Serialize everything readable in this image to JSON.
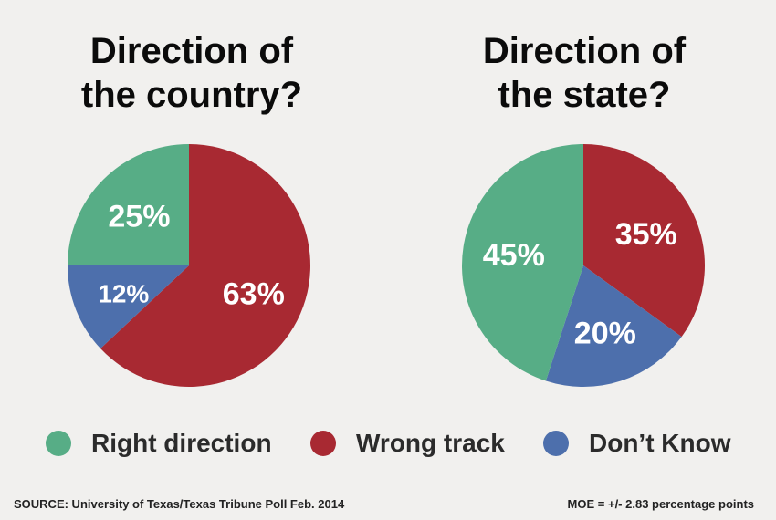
{
  "chart_data": [
    {
      "type": "pie",
      "title": "Direction of\nthe country?",
      "slices": [
        {
          "label": "Right direction",
          "value": 25,
          "display": "25%"
        },
        {
          "label": "Wrong track",
          "value": 63,
          "display": "63%"
        },
        {
          "label": "Don’t Know",
          "value": 12,
          "display": "12%"
        }
      ]
    },
    {
      "type": "pie",
      "title": "Direction of\nthe state?",
      "slices": [
        {
          "label": "Right direction",
          "value": 45,
          "display": "45%"
        },
        {
          "label": "Wrong track",
          "value": 35,
          "display": "35%"
        },
        {
          "label": "Don’t Know",
          "value": 20,
          "display": "20%"
        }
      ]
    }
  ],
  "colors": {
    "Right direction": "#57ad86",
    "Wrong track": "#a82932",
    "Don’t Know": "#4d6fac"
  },
  "legend": [
    "Right direction",
    "Wrong track",
    "Don’t Know"
  ],
  "source": "SOURCE: University of Texas/Texas Tribune Poll Feb. 2014",
  "moe": "MOE = +/- 2.83 percentage points"
}
